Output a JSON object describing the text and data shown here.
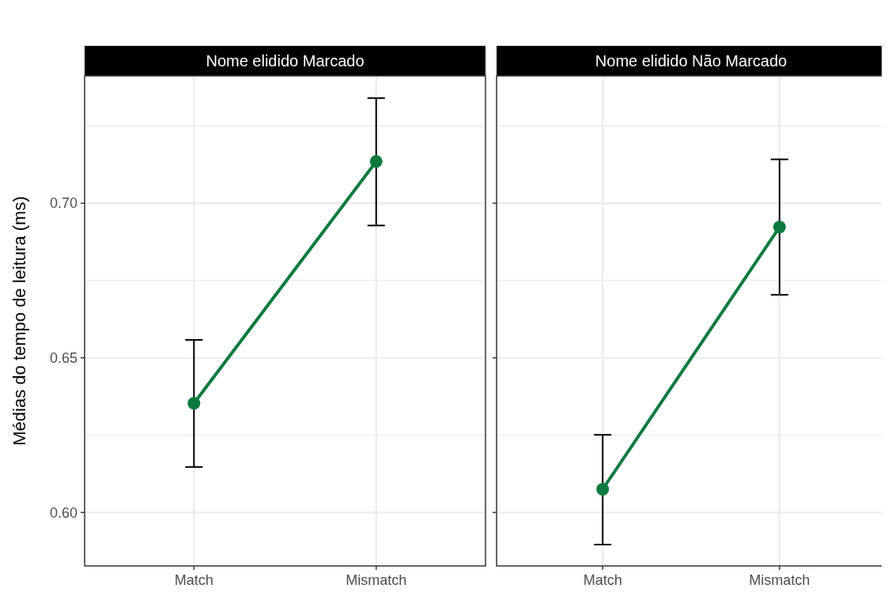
{
  "chart_data": [
    {
      "type": "line",
      "title": "Nome elidido Marcado",
      "ylabel": "Médias do tempo de leitura (ms)",
      "categories": [
        "Match",
        "Mismatch"
      ],
      "series": [
        {
          "color": "#0b7a3e",
          "values": [
            0.6353,
            0.7135
          ],
          "errors": [
            [
              0.6147,
              0.6558
            ],
            [
              0.6928,
              0.734
            ]
          ]
        }
      ],
      "ylim": [
        0.5827,
        0.7412
      ],
      "yticks": [
        {
          "value": 0.6,
          "label": "0.60"
        },
        {
          "value": 0.625,
          "label": null
        },
        0.65,
        {
          "value": 0.675,
          "label": null
        },
        {
          "value": 0.7,
          "label": "0.70"
        },
        {
          "value": 0.725,
          "label": null
        }
      ],
      "grid": true,
      "marker": "circle"
    },
    {
      "type": "line",
      "title": "Nome elidido Não Marcado",
      "categories": [
        "Match",
        "Mismatch"
      ],
      "series": [
        {
          "color": "#0b7a3e",
          "values": [
            0.6075,
            0.6923
          ],
          "errors": [
            [
              0.5896,
              0.6251
            ],
            [
              0.6704,
              0.7142
            ]
          ]
        }
      ],
      "ylim": [
        0.5827,
        0.7412
      ],
      "yticks": [
        0.6,
        {
          "value": 0.625,
          "label": null
        },
        0.65,
        {
          "value": 0.675,
          "label": null
        },
        0.7,
        {
          "value": 0.725,
          "label": null
        }
      ],
      "grid": true,
      "marker": "circle",
      "tick_labels": "x"
    }
  ]
}
